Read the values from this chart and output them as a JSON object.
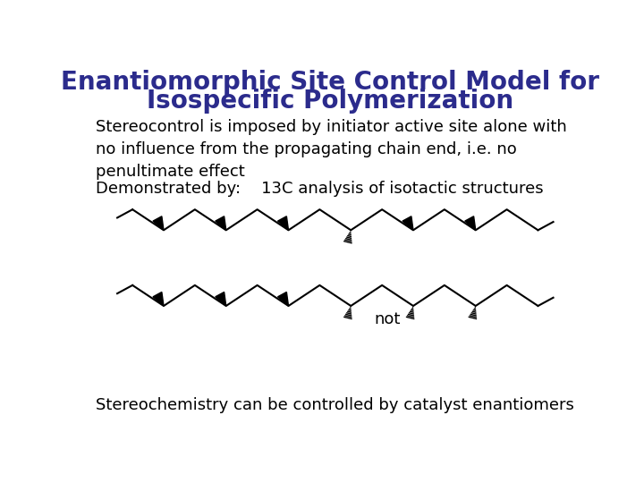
{
  "title_line1": "Enantiomorphic Site Control Model for",
  "title_line2": "Isospecific Polymerization",
  "title_color": "#2b2b8c",
  "title_fontsize": 20,
  "body_text1": "Stereocontrol is imposed by initiator active site alone with\nno influence from the propagating chain end, i.e. no\npenultimate effect",
  "body_text2": "Demonstrated by:    13C analysis of isotactic structures",
  "body_text3": "Stereochemistry can be controlled by catalyst enantiomers",
  "body_fontsize": 13,
  "background_color": "#ffffff",
  "text_color": "#000000"
}
